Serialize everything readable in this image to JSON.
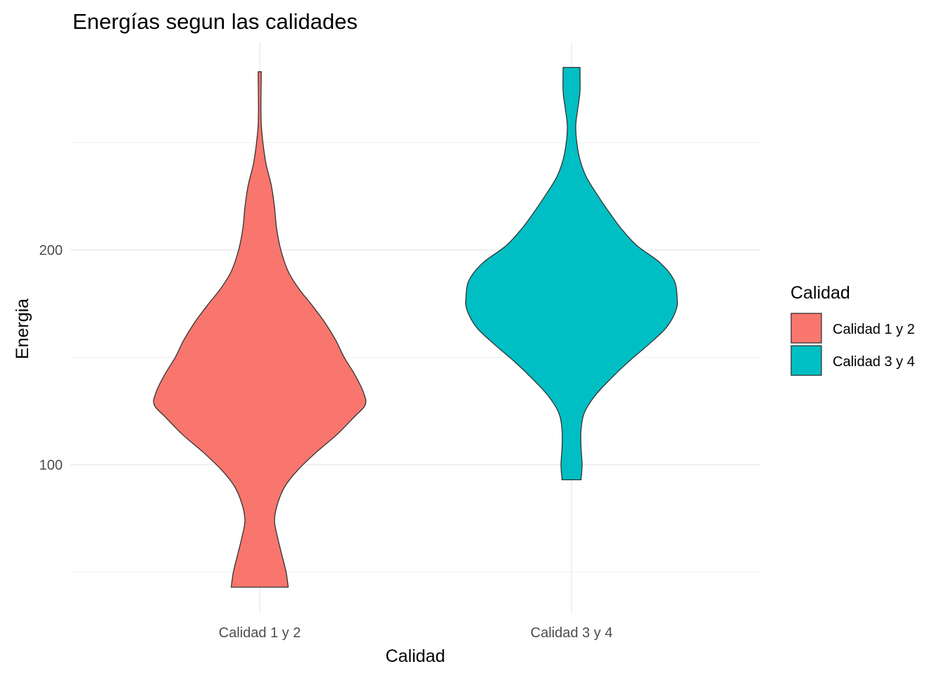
{
  "chart_data": {
    "type": "violin",
    "title": "Energías segun las calidades",
    "xlabel": "Calidad",
    "ylabel": "Energia",
    "categories": [
      "Calidad 1 y 2",
      "Calidad 3 y 4"
    ],
    "y_ticks": [
      100,
      200
    ],
    "ylim": [
      25,
      290
    ],
    "grid": true,
    "legend": {
      "title": "Calidad",
      "position": "right",
      "items": [
        "Calidad 1 y 2",
        "Calidad 3 y 4"
      ]
    },
    "colors": [
      "#F8766D",
      "#00BFC4"
    ],
    "series": [
      {
        "name": "Calidad 1 y 2",
        "min": 43,
        "max": 283,
        "density": [
          [
            43,
            0.27
          ],
          [
            50,
            0.25
          ],
          [
            58,
            0.21
          ],
          [
            66,
            0.17
          ],
          [
            74,
            0.14
          ],
          [
            82,
            0.17
          ],
          [
            90,
            0.24
          ],
          [
            98,
            0.37
          ],
          [
            106,
            0.54
          ],
          [
            114,
            0.73
          ],
          [
            122,
            0.89
          ],
          [
            128,
            1.0
          ],
          [
            134,
            0.98
          ],
          [
            142,
            0.9
          ],
          [
            150,
            0.8
          ],
          [
            158,
            0.72
          ],
          [
            166,
            0.62
          ],
          [
            174,
            0.5
          ],
          [
            182,
            0.37
          ],
          [
            190,
            0.27
          ],
          [
            200,
            0.2
          ],
          [
            210,
            0.16
          ],
          [
            220,
            0.14
          ],
          [
            230,
            0.11
          ],
          [
            240,
            0.06
          ],
          [
            250,
            0.03
          ],
          [
            258,
            0.015
          ],
          [
            264,
            0.012
          ],
          [
            270,
            0.012
          ],
          [
            283,
            0.015
          ]
        ]
      },
      {
        "name": "Calidad 3 y 4",
        "min": 93,
        "max": 285,
        "density": [
          [
            93,
            0.09
          ],
          [
            100,
            0.1
          ],
          [
            108,
            0.09
          ],
          [
            116,
            0.09
          ],
          [
            124,
            0.12
          ],
          [
            132,
            0.22
          ],
          [
            140,
            0.37
          ],
          [
            148,
            0.54
          ],
          [
            156,
            0.73
          ],
          [
            164,
            0.9
          ],
          [
            172,
            0.99
          ],
          [
            178,
            1.0
          ],
          [
            186,
            0.97
          ],
          [
            194,
            0.84
          ],
          [
            202,
            0.62
          ],
          [
            210,
            0.47
          ],
          [
            218,
            0.35
          ],
          [
            226,
            0.24
          ],
          [
            234,
            0.14
          ],
          [
            242,
            0.08
          ],
          [
            250,
            0.05
          ],
          [
            258,
            0.04
          ],
          [
            266,
            0.06
          ],
          [
            274,
            0.08
          ],
          [
            285,
            0.08
          ]
        ]
      }
    ]
  }
}
